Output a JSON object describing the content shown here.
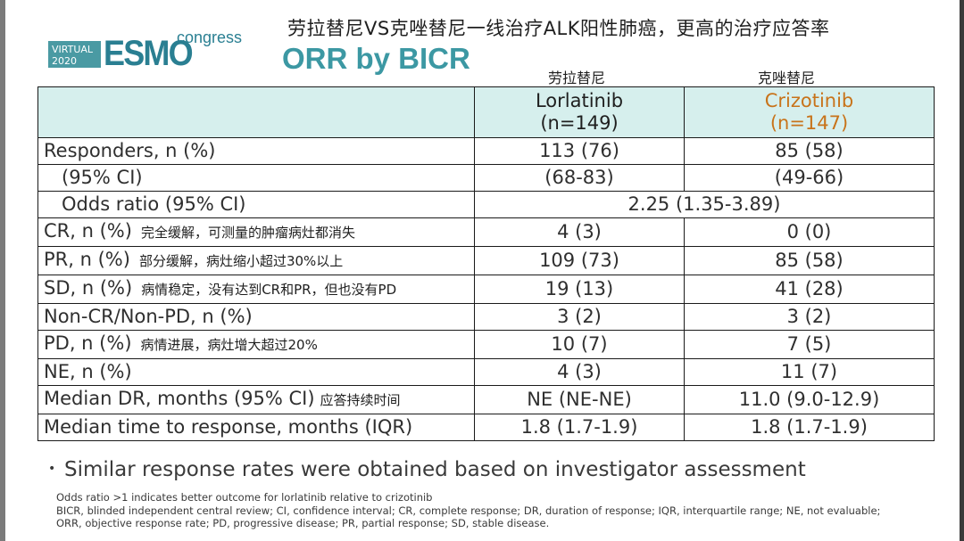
{
  "header": {
    "cn_title": "劳拉替尼VS克唑替尼一线治疗ALK阳性肺癌，更高的治疗应答率",
    "logo": {
      "virtual": "VIRTUAL",
      "year": "2020",
      "brand": "ESMO",
      "suffix": "congress"
    },
    "subtitle": "ORR by BICR",
    "col_cn_lorlatinib": "劳拉替尼",
    "col_cn_crizotinib": "克唑替尼"
  },
  "table": {
    "columns": [
      {
        "name": "Lorlatinib",
        "n": "(n=149)"
      },
      {
        "name": "Crizotinib",
        "n": "(n=147)"
      }
    ],
    "rows": [
      {
        "label": "Responders, n (%)",
        "note": "",
        "lor": "113 (76)",
        "criz": "85 (58)"
      },
      {
        "label": "(95% CI)",
        "note": "",
        "lor": "(68-83)",
        "criz": "(49-66)"
      },
      {
        "label": "Odds ratio (95% CI)",
        "note": "",
        "merged": "2.25 (1.35-3.89)"
      },
      {
        "label": "CR, n (%)",
        "note": "完全缓解，可测量的肿瘤病灶都消失",
        "lor": "4 (3)",
        "criz": "0 (0)"
      },
      {
        "label": "PR, n (%)",
        "note": "部分缓解，病灶缩小超过30%以上",
        "lor": "109 (73)",
        "criz": "85 (58)"
      },
      {
        "label": "SD, n (%)",
        "note": "病情稳定，没有达到CR和PR，但也没有PD",
        "lor": "19 (13)",
        "criz": "41 (28)"
      },
      {
        "label": "Non-CR/Non-PD, n (%)",
        "note": "",
        "lor": "3 (2)",
        "criz": "3 (2)"
      },
      {
        "label": "PD, n (%)",
        "note": "病情进展，病灶增大超过20%",
        "lor": "10 (7)",
        "criz": "7 (5)"
      },
      {
        "label": "NE, n (%)",
        "note": "",
        "lor": "4 (3)",
        "criz": "11 (7)"
      },
      {
        "label": "Median DR, months (95% CI)",
        "note": "应答持续时间",
        "lor": "NE (NE-NE)",
        "criz": "11.0 (9.0-12.9)"
      },
      {
        "label": "Median time to response, months (IQR)",
        "note": "",
        "lor": "1.8 (1.7-1.9)",
        "criz": "1.8 (1.7-1.9)"
      }
    ]
  },
  "bullet": "Similar response rates were obtained based on investigator assessment",
  "footnotes": {
    "line1": "Odds ratio >1 indicates better outcome for lorlatinib relative to crizotinib",
    "line2": "BICR, blinded independent central review; CI, confidence interval; CR, complete response; DR, duration of response; IQR, interquartile range; NE, not evaluable;",
    "line3": "ORR, objective response rate; PD, progressive disease; PR, partial response; SD, stable disease."
  },
  "colors": {
    "header_bg": "#d6efed",
    "crizotinib": "#c8731a",
    "brand_teal": "#2a7f92",
    "subtitle": "#3c98a3"
  }
}
